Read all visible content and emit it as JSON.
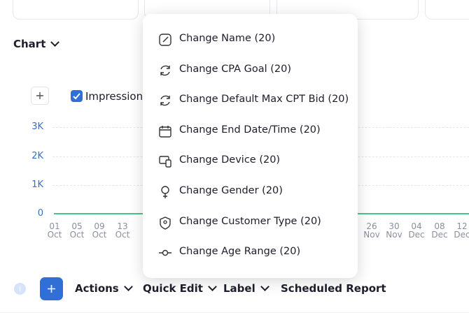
{
  "chart": {
    "title": "Chart",
    "legend": "Impressions",
    "yticks": [
      "3K",
      "2K",
      "1K",
      "0"
    ],
    "xticks": [
      {
        "day": "01",
        "month": "Oct"
      },
      {
        "day": "05",
        "month": "Oct"
      },
      {
        "day": "09",
        "month": "Oct"
      },
      {
        "day": "13",
        "month": "Oct"
      },
      {
        "day": "26",
        "month": "Nov"
      },
      {
        "day": "30",
        "month": "Nov"
      },
      {
        "day": "04",
        "month": "Dec"
      },
      {
        "day": "08",
        "month": "Dec"
      },
      {
        "day": "12",
        "month": "Dec"
      }
    ]
  },
  "menu": {
    "items": [
      "Change Name (20)",
      "Change CPA Goal (20)",
      "Change Default Max CPT Bid (20)",
      "Change End Date/Time (20)",
      "Change Device (20)",
      "Change Gender (20)",
      "Change Customer Type (20)",
      "Change Age Range (20)"
    ]
  },
  "toolbar": {
    "buttons": [
      "Actions",
      "Quick Edit",
      "Label",
      "Scheduled Report"
    ]
  }
}
